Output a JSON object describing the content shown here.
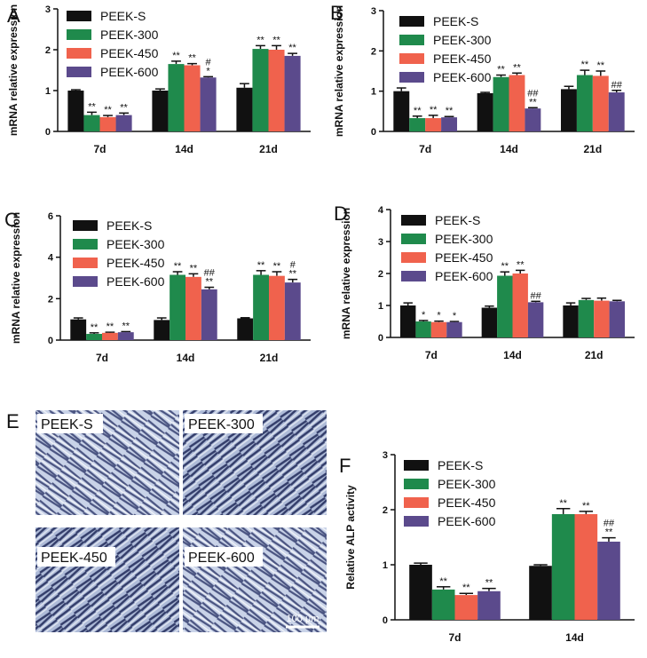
{
  "chart_data": [
    {
      "type": "bar",
      "panel": "A",
      "ylabel": "mRNA relative expression",
      "categories": [
        "7d",
        "14d",
        "21d"
      ],
      "ylim": [
        0,
        3
      ],
      "yticks": [
        0,
        1,
        2,
        3
      ],
      "series": [
        {
          "name": "PEEK-S",
          "color": "#111111",
          "values": [
            1.0,
            1.0,
            1.07
          ],
          "errors": [
            0.02,
            0.04,
            0.1
          ],
          "annotations": [
            null,
            null,
            null
          ]
        },
        {
          "name": "PEEK-300",
          "color": "#1f8a4c",
          "values": [
            0.4,
            1.65,
            2.02
          ],
          "errors": [
            0.07,
            0.07,
            0.08
          ],
          "annotations": [
            [
              "**"
            ],
            [
              "**"
            ],
            [
              "**"
            ]
          ]
        },
        {
          "name": "PEEK-450",
          "color": "#f0624d",
          "values": [
            0.35,
            1.62,
            2.0
          ],
          "errors": [
            0.04,
            0.04,
            0.1
          ],
          "annotations": [
            [
              "**"
            ],
            [
              "**"
            ],
            [
              "**"
            ]
          ]
        },
        {
          "name": "PEEK-600",
          "color": "#5b4a8c",
          "values": [
            0.4,
            1.32,
            1.85
          ],
          "errors": [
            0.05,
            0.02,
            0.06
          ],
          "annotations": [
            [
              "**"
            ],
            [
              "#",
              "*"
            ],
            [
              "**"
            ]
          ]
        }
      ]
    },
    {
      "type": "bar",
      "panel": "B",
      "ylabel": "mRNA relative expression",
      "categories": [
        "7d",
        "14d",
        "21d"
      ],
      "ylim": [
        0,
        3
      ],
      "yticks": [
        0,
        1,
        2,
        3
      ],
      "series": [
        {
          "name": "PEEK-S",
          "color": "#111111",
          "values": [
            1.0,
            0.95,
            1.05
          ],
          "errors": [
            0.08,
            0.02,
            0.07
          ],
          "annotations": [
            null,
            null,
            null
          ]
        },
        {
          "name": "PEEK-300",
          "color": "#1f8a4c",
          "values": [
            0.33,
            1.35,
            1.4
          ],
          "errors": [
            0.05,
            0.05,
            0.12
          ],
          "annotations": [
            [
              "**"
            ],
            [
              "**"
            ],
            [
              "**"
            ]
          ]
        },
        {
          "name": "PEEK-450",
          "color": "#f0624d",
          "values": [
            0.33,
            1.4,
            1.38
          ],
          "errors": [
            0.07,
            0.05,
            0.12
          ],
          "annotations": [
            [
              "**"
            ],
            [
              "**"
            ],
            [
              "**"
            ]
          ]
        },
        {
          "name": "PEEK-600",
          "color": "#5b4a8c",
          "values": [
            0.35,
            0.57,
            0.97
          ],
          "errors": [
            0.02,
            0.02,
            0.05
          ],
          "annotations": [
            [
              "**"
            ],
            [
              "##",
              "**"
            ],
            [
              "##"
            ]
          ]
        }
      ]
    },
    {
      "type": "bar",
      "panel": "C",
      "ylabel": "mRNA relative expression",
      "categories": [
        "7d",
        "14d",
        "21d"
      ],
      "ylim": [
        0,
        6
      ],
      "yticks": [
        0,
        2,
        4,
        6
      ],
      "series": [
        {
          "name": "PEEK-S",
          "color": "#111111",
          "values": [
            1.0,
            0.97,
            1.05
          ],
          "errors": [
            0.07,
            0.1,
            0.03
          ],
          "annotations": [
            null,
            null,
            null
          ]
        },
        {
          "name": "PEEK-300",
          "color": "#1f8a4c",
          "values": [
            0.3,
            3.15,
            3.15
          ],
          "errors": [
            0.05,
            0.15,
            0.2
          ],
          "annotations": [
            [
              "**"
            ],
            [
              "**"
            ],
            [
              "**"
            ]
          ]
        },
        {
          "name": "PEEK-450",
          "color": "#f0624d",
          "values": [
            0.35,
            3.05,
            3.1
          ],
          "errors": [
            0.03,
            0.15,
            0.2
          ],
          "annotations": [
            [
              "**"
            ],
            [
              "**"
            ],
            [
              "**"
            ]
          ]
        },
        {
          "name": "PEEK-600",
          "color": "#5b4a8c",
          "values": [
            0.38,
            2.45,
            2.78
          ],
          "errors": [
            0.03,
            0.1,
            0.15
          ],
          "annotations": [
            [
              "**"
            ],
            [
              "##",
              "**"
            ],
            [
              "#",
              "**"
            ]
          ]
        }
      ]
    },
    {
      "type": "bar",
      "panel": "D",
      "ylabel": "mRNA relative expression",
      "categories": [
        "7d",
        "14d",
        "21d"
      ],
      "ylim": [
        0,
        4
      ],
      "yticks": [
        0,
        1,
        2,
        3,
        4
      ],
      "series": [
        {
          "name": "PEEK-S",
          "color": "#111111",
          "values": [
            1.0,
            0.93,
            1.0
          ],
          "errors": [
            0.08,
            0.05,
            0.08
          ],
          "annotations": [
            null,
            null,
            null
          ]
        },
        {
          "name": "PEEK-300",
          "color": "#1f8a4c",
          "values": [
            0.5,
            1.93,
            1.17
          ],
          "errors": [
            0.03,
            0.12,
            0.05
          ],
          "annotations": [
            [
              "*"
            ],
            [
              "**"
            ],
            null
          ]
        },
        {
          "name": "PEEK-450",
          "color": "#f0624d",
          "values": [
            0.48,
            2.0,
            1.15
          ],
          "errors": [
            0.03,
            0.1,
            0.08
          ],
          "annotations": [
            [
              "*"
            ],
            [
              "**"
            ],
            null
          ]
        },
        {
          "name": "PEEK-600",
          "color": "#5b4a8c",
          "values": [
            0.48,
            1.1,
            1.13
          ],
          "errors": [
            0.02,
            0.03,
            0.03
          ],
          "annotations": [
            [
              "*"
            ],
            [
              "##"
            ],
            null
          ]
        }
      ]
    },
    {
      "type": "bar",
      "panel": "F",
      "ylabel": "Relative ALP activity",
      "categories": [
        "7d",
        "14d"
      ],
      "ylim": [
        0,
        3
      ],
      "yticks": [
        0,
        1,
        2,
        3
      ],
      "series": [
        {
          "name": "PEEK-S",
          "color": "#111111",
          "values": [
            1.0,
            0.98
          ],
          "errors": [
            0.03,
            0.02
          ],
          "annotations": [
            null,
            null
          ]
        },
        {
          "name": "PEEK-300",
          "color": "#1f8a4c",
          "values": [
            0.55,
            1.92
          ],
          "errors": [
            0.05,
            0.1
          ],
          "annotations": [
            [
              "**"
            ],
            [
              "**"
            ]
          ]
        },
        {
          "name": "PEEK-450",
          "color": "#f0624d",
          "values": [
            0.45,
            1.92
          ],
          "errors": [
            0.03,
            0.05
          ],
          "annotations": [
            [
              "**"
            ],
            [
              "**"
            ]
          ]
        },
        {
          "name": "PEEK-600",
          "color": "#5b4a8c",
          "values": [
            0.52,
            1.42
          ],
          "errors": [
            0.05,
            0.07
          ],
          "annotations": [
            [
              "**"
            ],
            [
              "##",
              "**"
            ]
          ]
        }
      ]
    }
  ],
  "image_panel": {
    "panel": "E",
    "labels": [
      "PEEK-S",
      "PEEK-300",
      "PEEK-450",
      "PEEK-600"
    ],
    "scale_bar": "100 μm"
  }
}
